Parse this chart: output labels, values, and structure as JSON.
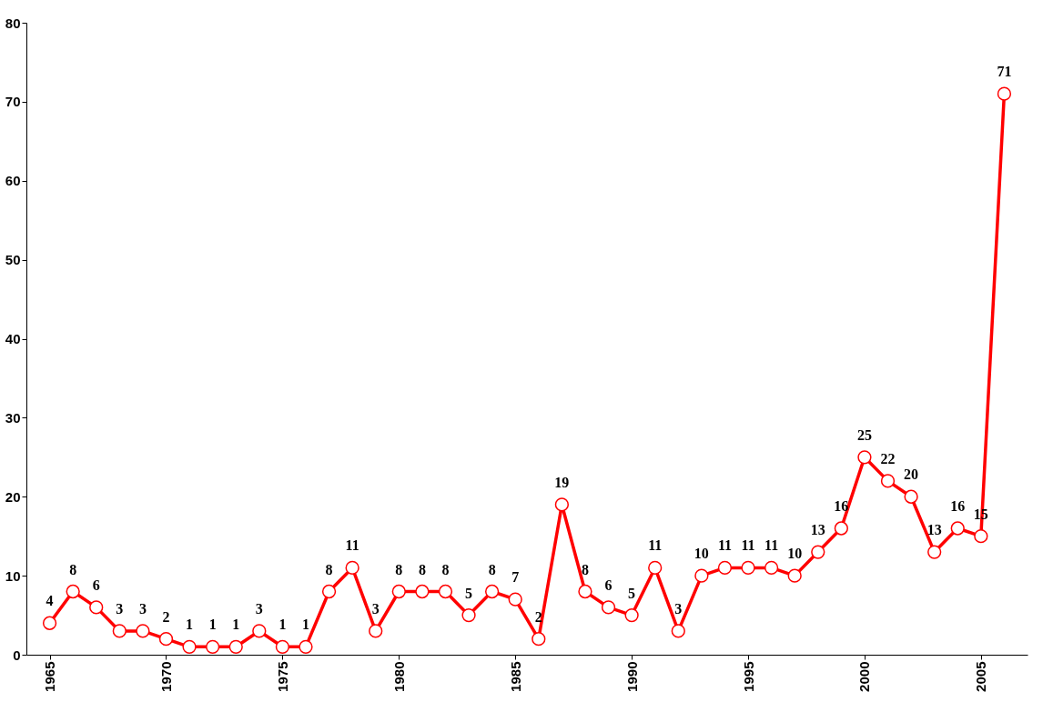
{
  "chart_data": {
    "type": "line",
    "x": [
      1965,
      1966,
      1967,
      1968,
      1969,
      1970,
      1971,
      1972,
      1973,
      1974,
      1975,
      1976,
      1977,
      1978,
      1979,
      1980,
      1981,
      1982,
      1983,
      1984,
      1985,
      1986,
      1987,
      1988,
      1989,
      1990,
      1991,
      1992,
      1993,
      1994,
      1995,
      1996,
      1997,
      1998,
      1999,
      2000,
      2001,
      2002,
      2003,
      2004,
      2005,
      2006
    ],
    "series": [
      {
        "color": "#ff0000",
        "values": [
          4,
          8,
          6,
          3,
          3,
          2,
          1,
          1,
          1,
          3,
          1,
          1,
          8,
          11,
          3,
          8,
          8,
          8,
          5,
          8,
          7,
          2,
          19,
          8,
          6,
          5,
          11,
          3,
          10,
          11,
          11,
          11,
          10,
          13,
          16,
          25,
          22,
          20,
          13,
          16,
          15,
          71
        ]
      }
    ],
    "xlim": [
      1964,
      2007
    ],
    "xticks": [
      1965,
      1970,
      1975,
      1980,
      1985,
      1990,
      1995,
      2000,
      2005
    ],
    "ylim": [
      0,
      80
    ],
    "yticks": [
      0,
      10,
      20,
      30,
      40,
      50,
      60,
      70,
      80
    ],
    "grid": false,
    "marker": "circle",
    "line_style": "solid",
    "data_labels": true
  }
}
